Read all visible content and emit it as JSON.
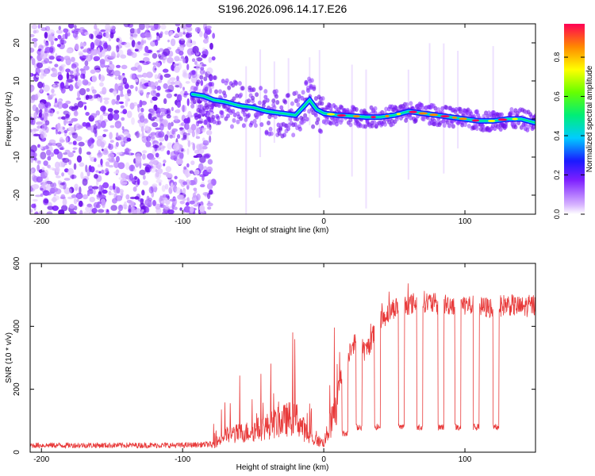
{
  "title": "S196.2026.096.14.17.E26",
  "chart_data": [
    {
      "type": "heatmap",
      "name": "spectrogram",
      "xlabel": "Height of straight line (km)",
      "ylabel": "Frequency (Hz)",
      "xlim": [
        -208,
        150
      ],
      "ylim": [
        -25,
        25
      ],
      "xticks": [
        -200,
        -100,
        0,
        100
      ],
      "yticks": [
        -20,
        -10,
        0,
        10,
        20
      ],
      "ridge": {
        "x": [
          -93,
          -85,
          -78,
          -70,
          -60,
          -50,
          -40,
          -30,
          -20,
          -15,
          -10,
          -5,
          0,
          10,
          20,
          30,
          40,
          50,
          60,
          70,
          80,
          90,
          100,
          110,
          120,
          130,
          140,
          150
        ],
        "y": [
          6.5,
          6,
          5,
          4.5,
          3.5,
          3,
          2,
          1.5,
          1,
          3,
          5,
          2.5,
          1.5,
          1,
          0.8,
          0.5,
          0.5,
          1,
          2,
          1.5,
          1,
          0.5,
          0,
          -0.5,
          -0.5,
          0,
          0,
          -1
        ]
      },
      "noise_region_x": [
        -208,
        -78
      ],
      "colorbar": {
        "label": "Normalized spectral amplitude",
        "ticks": [
          0.0,
          0.2,
          0.4,
          0.6,
          0.8
        ],
        "tick_labels": [
          "0.0",
          "0.2",
          "0.4",
          "0.6",
          "0.8"
        ],
        "range": [
          0,
          0.97
        ]
      }
    },
    {
      "type": "line",
      "name": "snr",
      "xlabel": "Height of straight line (km)",
      "ylabel": "SNR (10 * v/v)",
      "xlim": [
        -208,
        150
      ],
      "ylim": [
        0,
        600
      ],
      "xticks": [
        -200,
        -100,
        0,
        100
      ],
      "yticks": [
        0,
        200,
        400,
        600
      ],
      "color": "#e83a3a",
      "envelope_x": [
        -208,
        -100,
        -80,
        -70,
        -60,
        -50,
        -40,
        -30,
        -20,
        -10,
        0,
        10,
        20,
        30,
        40,
        50,
        60,
        70,
        80,
        90,
        100,
        110,
        120,
        130,
        140,
        150
      ],
      "envelope_y": [
        22,
        22,
        25,
        70,
        80,
        90,
        110,
        130,
        150,
        60,
        40,
        200,
        350,
        320,
        420,
        460,
        470,
        480,
        470,
        470,
        470,
        460,
        460,
        470,
        460,
        470
      ],
      "dips_x": [
        15,
        25,
        38,
        55,
        68,
        83,
        95,
        108,
        122
      ],
      "dips_y": [
        50,
        70,
        70,
        70,
        70,
        70,
        70,
        70,
        70
      ]
    }
  ]
}
